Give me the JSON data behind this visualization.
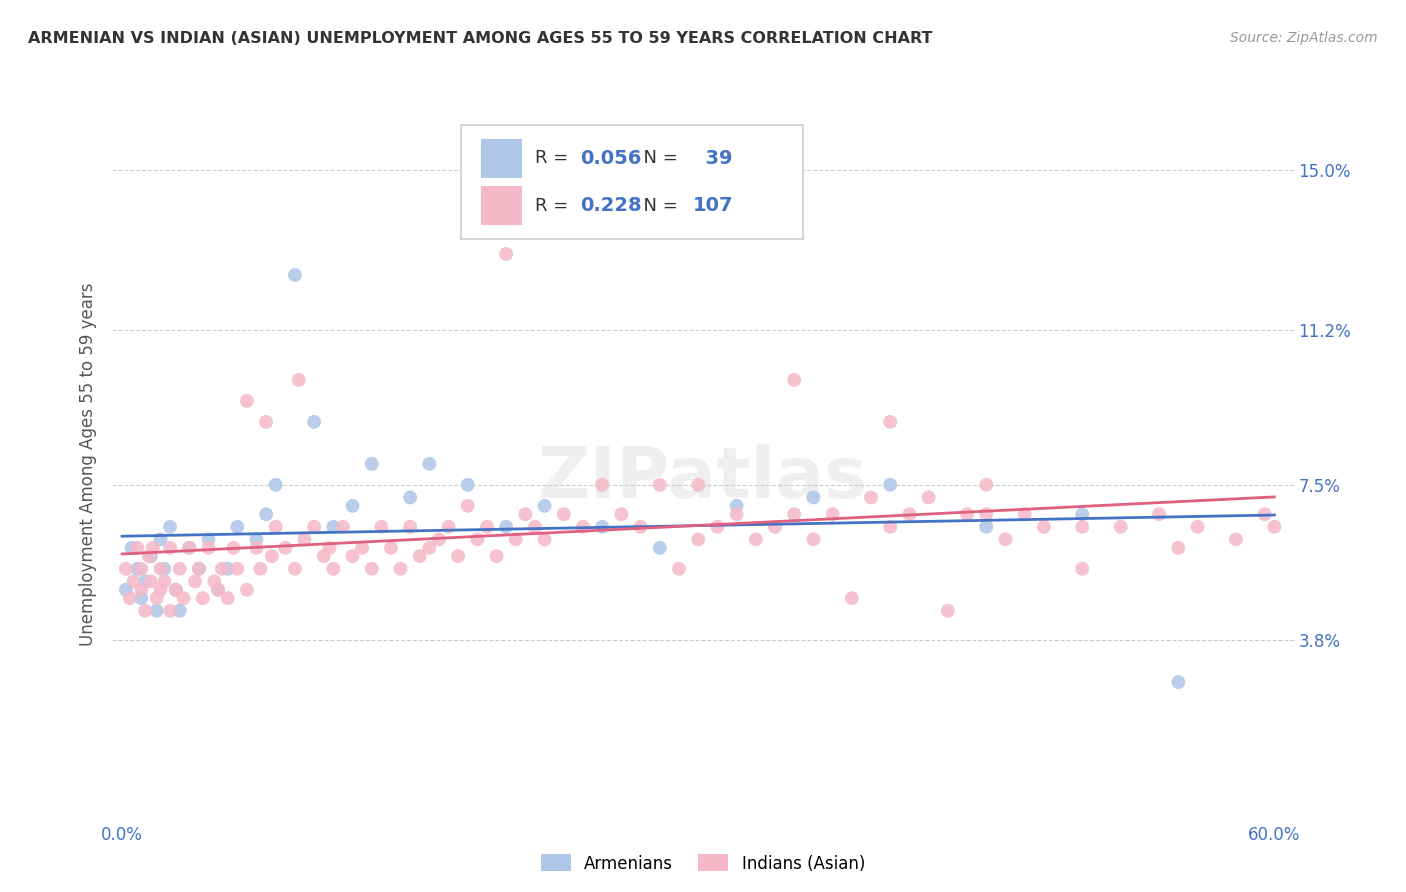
{
  "title": "ARMENIAN VS INDIAN (ASIAN) UNEMPLOYMENT AMONG AGES 55 TO 59 YEARS CORRELATION CHART",
  "source": "Source: ZipAtlas.com",
  "ylabel": "Unemployment Among Ages 55 to 59 years",
  "ytick_labels": [
    "3.8%",
    "7.5%",
    "11.2%",
    "15.0%"
  ],
  "ytick_values": [
    0.038,
    0.075,
    0.112,
    0.15
  ],
  "xlim": [
    -0.005,
    0.61
  ],
  "ylim": [
    -0.005,
    0.165
  ],
  "title_color": "#333333",
  "source_color": "#999999",
  "axis_tick_color": "#4472c4",
  "ylabel_color": "#555555",
  "grid_color": "#cccccc",
  "armenian_color": "#aec6e8",
  "indian_color": "#f5b8c8",
  "armenian_line_color": "#4472c4",
  "indian_line_color": "#e06080",
  "armenian_R": 0.056,
  "armenian_N": 39,
  "indian_R": 0.228,
  "indian_N": 107,
  "legend_label_armenians": "Armenians",
  "legend_label_indians": "Indians (Asian)",
  "armenian_x": [
    0.002,
    0.005,
    0.008,
    0.01,
    0.012,
    0.015,
    0.018,
    0.02,
    0.022,
    0.025,
    0.028,
    0.03,
    0.035,
    0.04,
    0.045,
    0.05,
    0.055,
    0.06,
    0.07,
    0.075,
    0.08,
    0.09,
    0.1,
    0.11,
    0.12,
    0.13,
    0.15,
    0.16,
    0.18,
    0.2,
    0.22,
    0.25,
    0.28,
    0.32,
    0.36,
    0.4,
    0.45,
    0.5,
    0.55
  ],
  "armenian_y": [
    0.05,
    0.06,
    0.055,
    0.048,
    0.052,
    0.058,
    0.045,
    0.062,
    0.055,
    0.065,
    0.05,
    0.045,
    0.06,
    0.055,
    0.062,
    0.05,
    0.055,
    0.065,
    0.062,
    0.068,
    0.075,
    0.125,
    0.09,
    0.065,
    0.07,
    0.08,
    0.072,
    0.08,
    0.075,
    0.065,
    0.07,
    0.065,
    0.06,
    0.07,
    0.072,
    0.075,
    0.065,
    0.068,
    0.028
  ],
  "indian_x": [
    0.002,
    0.004,
    0.006,
    0.008,
    0.01,
    0.01,
    0.012,
    0.014,
    0.015,
    0.016,
    0.018,
    0.02,
    0.02,
    0.022,
    0.025,
    0.025,
    0.028,
    0.03,
    0.032,
    0.035,
    0.038,
    0.04,
    0.042,
    0.045,
    0.048,
    0.05,
    0.052,
    0.055,
    0.058,
    0.06,
    0.065,
    0.065,
    0.07,
    0.072,
    0.075,
    0.078,
    0.08,
    0.085,
    0.09,
    0.092,
    0.095,
    0.1,
    0.105,
    0.108,
    0.11,
    0.115,
    0.12,
    0.125,
    0.13,
    0.135,
    0.14,
    0.145,
    0.15,
    0.155,
    0.16,
    0.165,
    0.17,
    0.175,
    0.18,
    0.185,
    0.19,
    0.195,
    0.2,
    0.205,
    0.21,
    0.215,
    0.22,
    0.23,
    0.24,
    0.25,
    0.26,
    0.27,
    0.28,
    0.29,
    0.3,
    0.31,
    0.32,
    0.33,
    0.34,
    0.35,
    0.36,
    0.37,
    0.38,
    0.39,
    0.4,
    0.41,
    0.42,
    0.43,
    0.44,
    0.45,
    0.46,
    0.47,
    0.48,
    0.5,
    0.52,
    0.54,
    0.56,
    0.58,
    0.595,
    0.6,
    0.2,
    0.3,
    0.35,
    0.4,
    0.45,
    0.5,
    0.55
  ],
  "indian_y": [
    0.055,
    0.048,
    0.052,
    0.06,
    0.05,
    0.055,
    0.045,
    0.058,
    0.052,
    0.06,
    0.048,
    0.05,
    0.055,
    0.052,
    0.045,
    0.06,
    0.05,
    0.055,
    0.048,
    0.06,
    0.052,
    0.055,
    0.048,
    0.06,
    0.052,
    0.05,
    0.055,
    0.048,
    0.06,
    0.055,
    0.05,
    0.095,
    0.06,
    0.055,
    0.09,
    0.058,
    0.065,
    0.06,
    0.055,
    0.1,
    0.062,
    0.065,
    0.058,
    0.06,
    0.055,
    0.065,
    0.058,
    0.06,
    0.055,
    0.065,
    0.06,
    0.055,
    0.065,
    0.058,
    0.06,
    0.062,
    0.065,
    0.058,
    0.07,
    0.062,
    0.065,
    0.058,
    0.14,
    0.062,
    0.068,
    0.065,
    0.062,
    0.068,
    0.065,
    0.075,
    0.068,
    0.065,
    0.075,
    0.055,
    0.062,
    0.065,
    0.068,
    0.062,
    0.065,
    0.068,
    0.062,
    0.068,
    0.048,
    0.072,
    0.065,
    0.068,
    0.072,
    0.045,
    0.068,
    0.075,
    0.062,
    0.068,
    0.065,
    0.055,
    0.065,
    0.068,
    0.065,
    0.062,
    0.068,
    0.065,
    0.13,
    0.075,
    0.1,
    0.09,
    0.068,
    0.065,
    0.06
  ]
}
